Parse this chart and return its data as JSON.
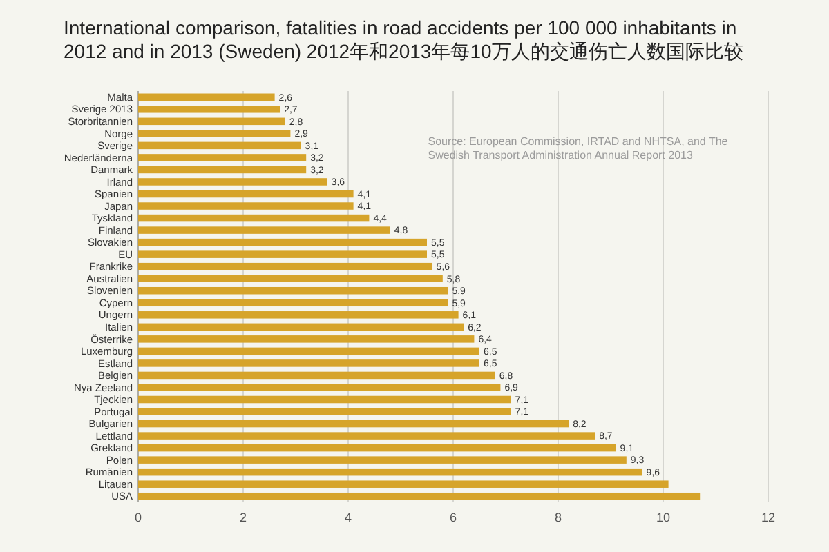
{
  "chart_data": {
    "type": "bar",
    "orientation": "horizontal",
    "title": "International comparison, fatalities in road accidents per 100 000 inhabitants in 2012 and in 2013 (Sweden) 2012年和2013年每10万人的交通伤亡人数国际比较",
    "categories": [
      "Malta",
      "Sverige 2013",
      "Storbritannien",
      "Norge",
      "Sverige",
      "Nederländerna",
      "Danmark",
      "Irland",
      "Spanien",
      "Japan",
      "Tyskland",
      "Finland",
      "Slovakien",
      "EU",
      "Frankrike",
      "Australien",
      "Slovenien",
      "Cypern",
      "Ungern",
      "Italien",
      "Österrike",
      "Luxemburg",
      "Estland",
      "Belgien",
      "Nya Zeeland",
      "Tjeckien",
      "Portugal",
      "Bulgarien",
      "Lettland",
      "Grekland",
      "Polen",
      "Rumänien",
      "Litauen",
      "USA"
    ],
    "values": [
      2.6,
      2.7,
      2.8,
      2.9,
      3.1,
      3.2,
      3.2,
      3.6,
      4.1,
      4.1,
      4.4,
      4.8,
      5.5,
      5.5,
      5.6,
      5.8,
      5.9,
      5.9,
      6.1,
      6.2,
      6.4,
      6.5,
      6.5,
      6.8,
      6.9,
      7.1,
      7.1,
      8.2,
      8.7,
      9.1,
      9.3,
      9.6,
      10.1,
      10.7
    ],
    "value_labels": [
      "2,6",
      "2,7",
      "2,8",
      "2,9",
      "3,1",
      "3,2",
      "3,2",
      "3,6",
      "4,1",
      "4,1",
      "4,4",
      "4,8",
      "5,5",
      "5,5",
      "5,6",
      "5,8",
      "5,9",
      "5,9",
      "6,1",
      "6,2",
      "6,4",
      "6,5",
      "6,5",
      "6,8",
      "6,9",
      "7,1",
      "7,1",
      "8,2",
      "8,7",
      "9,1",
      "9,3",
      "9,6",
      null,
      null
    ],
    "color": "#d6a42a",
    "xlim": [
      0,
      12
    ],
    "xticks": [
      0,
      2,
      4,
      6,
      8,
      10,
      12
    ],
    "grid": "x",
    "annotations": [
      "Source: European Commission, IRTAD and NHTSA, and The Swedish Transport Administration Annual Report 2013"
    ]
  }
}
